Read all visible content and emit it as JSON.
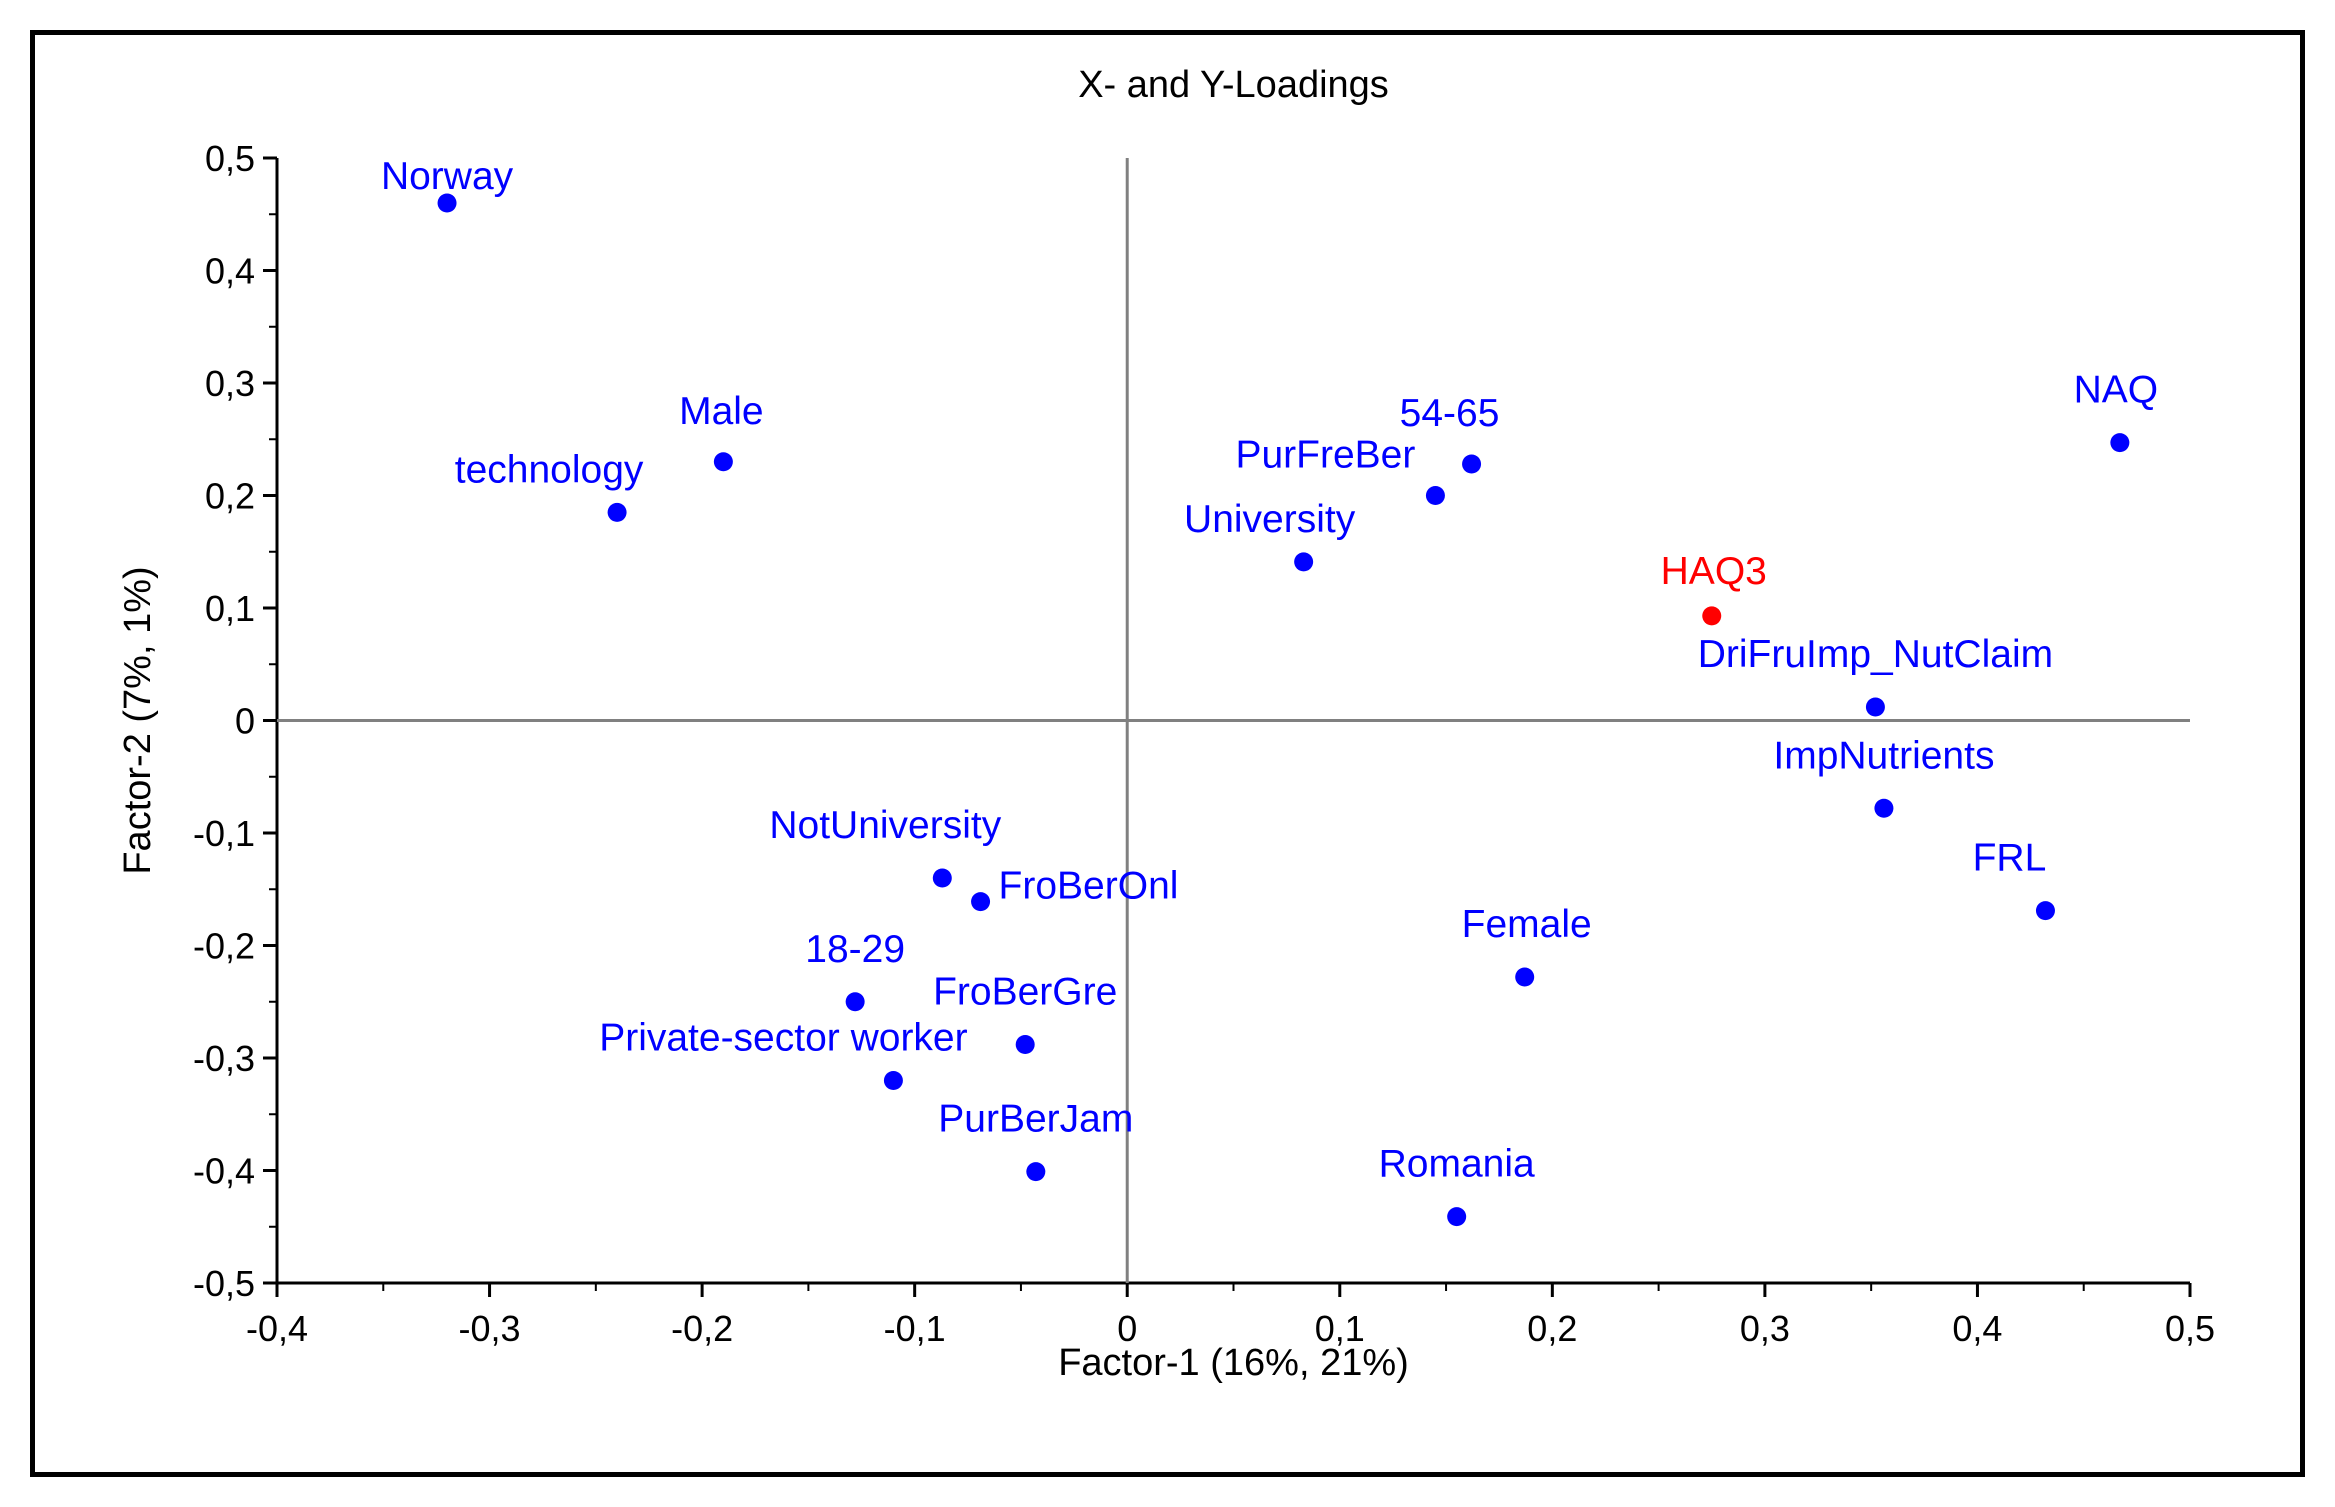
{
  "chart_data": {
    "type": "scatter",
    "title": "X- and Y-Loadings",
    "xlabel": "Factor-1 (16%, 21%)",
    "ylabel": "Factor-2 (7%, 1%)",
    "xlim": [
      -0.4,
      0.5
    ],
    "ylim": [
      -0.5,
      0.5
    ],
    "x_ticks": [
      -0.4,
      -0.3,
      -0.2,
      -0.1,
      0,
      0.1,
      0.2,
      0.3,
      0.4,
      0.5
    ],
    "x_tick_labels": [
      "-0,4",
      "-0,3",
      "-0,2",
      "-0,1",
      "0",
      "0,1",
      "0,2",
      "0,3",
      "0,4",
      "0,5"
    ],
    "y_ticks": [
      0.5,
      0.4,
      0.3,
      0.2,
      0.1,
      0,
      -0.1,
      -0.2,
      -0.3,
      -0.4,
      -0.5
    ],
    "y_tick_labels": [
      "0,5",
      "0,4",
      "0,3",
      "0,2",
      "0,1",
      "0",
      "-0,1",
      "-0,2",
      "-0,3",
      "-0,4",
      "-0,5"
    ],
    "grid": false,
    "colors": {
      "x_loading": "#0000ff",
      "y_loading": "#ff0000",
      "zero_line": "#808080"
    },
    "points": [
      {
        "label": "Norway",
        "x": -0.32,
        "y": 0.46,
        "group": "x"
      },
      {
        "label": "Male",
        "x": -0.19,
        "y": 0.23,
        "group": "x"
      },
      {
        "label": "technology",
        "x": -0.24,
        "y": 0.185,
        "group": "x"
      },
      {
        "label": "54-65",
        "x": 0.162,
        "y": 0.228,
        "group": "x"
      },
      {
        "label": "PurFreBer",
        "x": 0.145,
        "y": 0.2,
        "group": "x"
      },
      {
        "label": "University",
        "x": 0.083,
        "y": 0.141,
        "group": "x"
      },
      {
        "label": "NAQ",
        "x": 0.467,
        "y": 0.247,
        "group": "x"
      },
      {
        "label": "HAQ3",
        "x": 0.275,
        "y": 0.093,
        "group": "y"
      },
      {
        "label": "DriFruImp_NutClaim",
        "x": 0.352,
        "y": 0.012,
        "group": "x"
      },
      {
        "label": "ImpNutrients",
        "x": 0.356,
        "y": -0.078,
        "group": "x"
      },
      {
        "label": "FRL",
        "x": 0.432,
        "y": -0.169,
        "group": "x"
      },
      {
        "label": "NotUniversity",
        "x": -0.087,
        "y": -0.14,
        "group": "x"
      },
      {
        "label": "FroBerOnl",
        "x": -0.069,
        "y": -0.161,
        "group": "x"
      },
      {
        "label": "Female",
        "x": 0.187,
        "y": -0.228,
        "group": "x"
      },
      {
        "label": "18-29",
        "x": -0.128,
        "y": -0.25,
        "group": "x"
      },
      {
        "label": "FroBerGre",
        "x": -0.048,
        "y": -0.288,
        "group": "x"
      },
      {
        "label": "Private-sector  worker",
        "x": -0.11,
        "y": -0.32,
        "group": "x"
      },
      {
        "label": "PurBerJam",
        "x": -0.043,
        "y": -0.401,
        "group": "x"
      },
      {
        "label": "Romania",
        "x": 0.155,
        "y": -0.441,
        "group": "x"
      }
    ]
  }
}
